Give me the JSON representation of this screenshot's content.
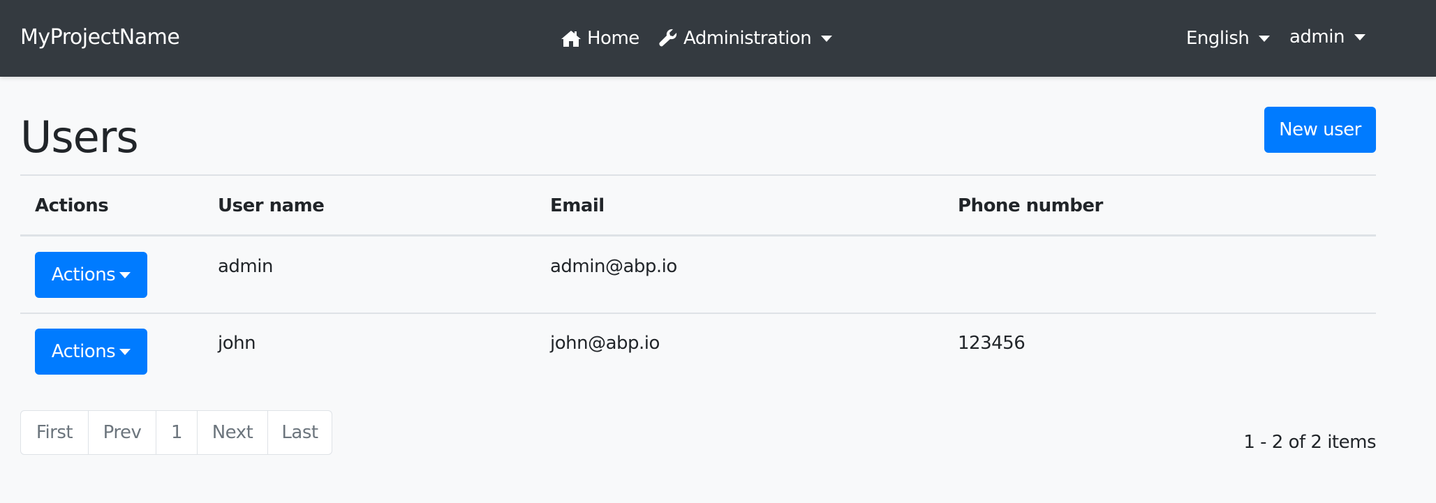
{
  "navbar": {
    "brand": "MyProjectName",
    "home": "Home",
    "administration": "Administration",
    "language": "English",
    "user": "admin"
  },
  "page": {
    "title": "Users",
    "new_user": "New user"
  },
  "table": {
    "headers": [
      "Actions",
      "User name",
      "Email",
      "Phone number"
    ],
    "rows": [
      {
        "action": "Actions",
        "username": "admin",
        "email": "admin@abp.io",
        "phone": ""
      },
      {
        "action": "Actions",
        "username": "john",
        "email": "john@abp.io",
        "phone": "123456"
      }
    ]
  },
  "pagination": {
    "first": "First",
    "prev": "Prev",
    "page": "1",
    "next": "Next",
    "last": "Last",
    "summary": "1 - 2 of 2 items"
  },
  "colors": {
    "navbar": "#343a40",
    "primary": "#007bff",
    "background": "#f8f9fa"
  }
}
